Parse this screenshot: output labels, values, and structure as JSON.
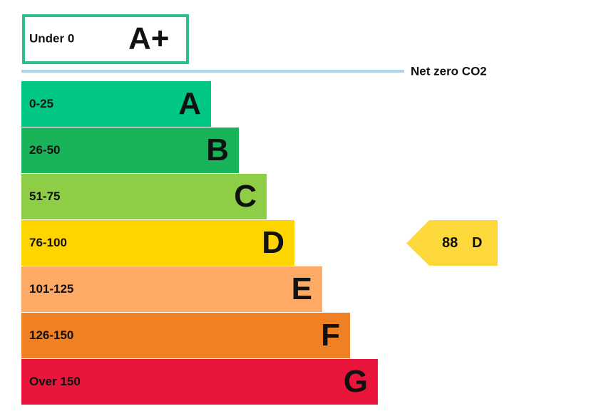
{
  "top_band": {
    "range": "Under 0",
    "letter": "A+",
    "color": "#2ec08a"
  },
  "net_zero": {
    "label": "Net zero CO2",
    "color": "#a9d8e6"
  },
  "bands": [
    {
      "range": "0-25",
      "letter": "A",
      "color": "#00c781"
    },
    {
      "range": "26-50",
      "letter": "B",
      "color": "#19b459"
    },
    {
      "range": "51-75",
      "letter": "C",
      "color": "#8dce46"
    },
    {
      "range": "76-100",
      "letter": "D",
      "color": "#ffd500"
    },
    {
      "range": "101-125",
      "letter": "E",
      "color": "#fcaa65"
    },
    {
      "range": "126-150",
      "letter": "F",
      "color": "#ef8023"
    },
    {
      "range": "Over 150",
      "letter": "G",
      "color": "#e9153b"
    }
  ],
  "current": {
    "score": "88",
    "letter": "D",
    "band": 3,
    "color": "#fcd83a"
  }
}
